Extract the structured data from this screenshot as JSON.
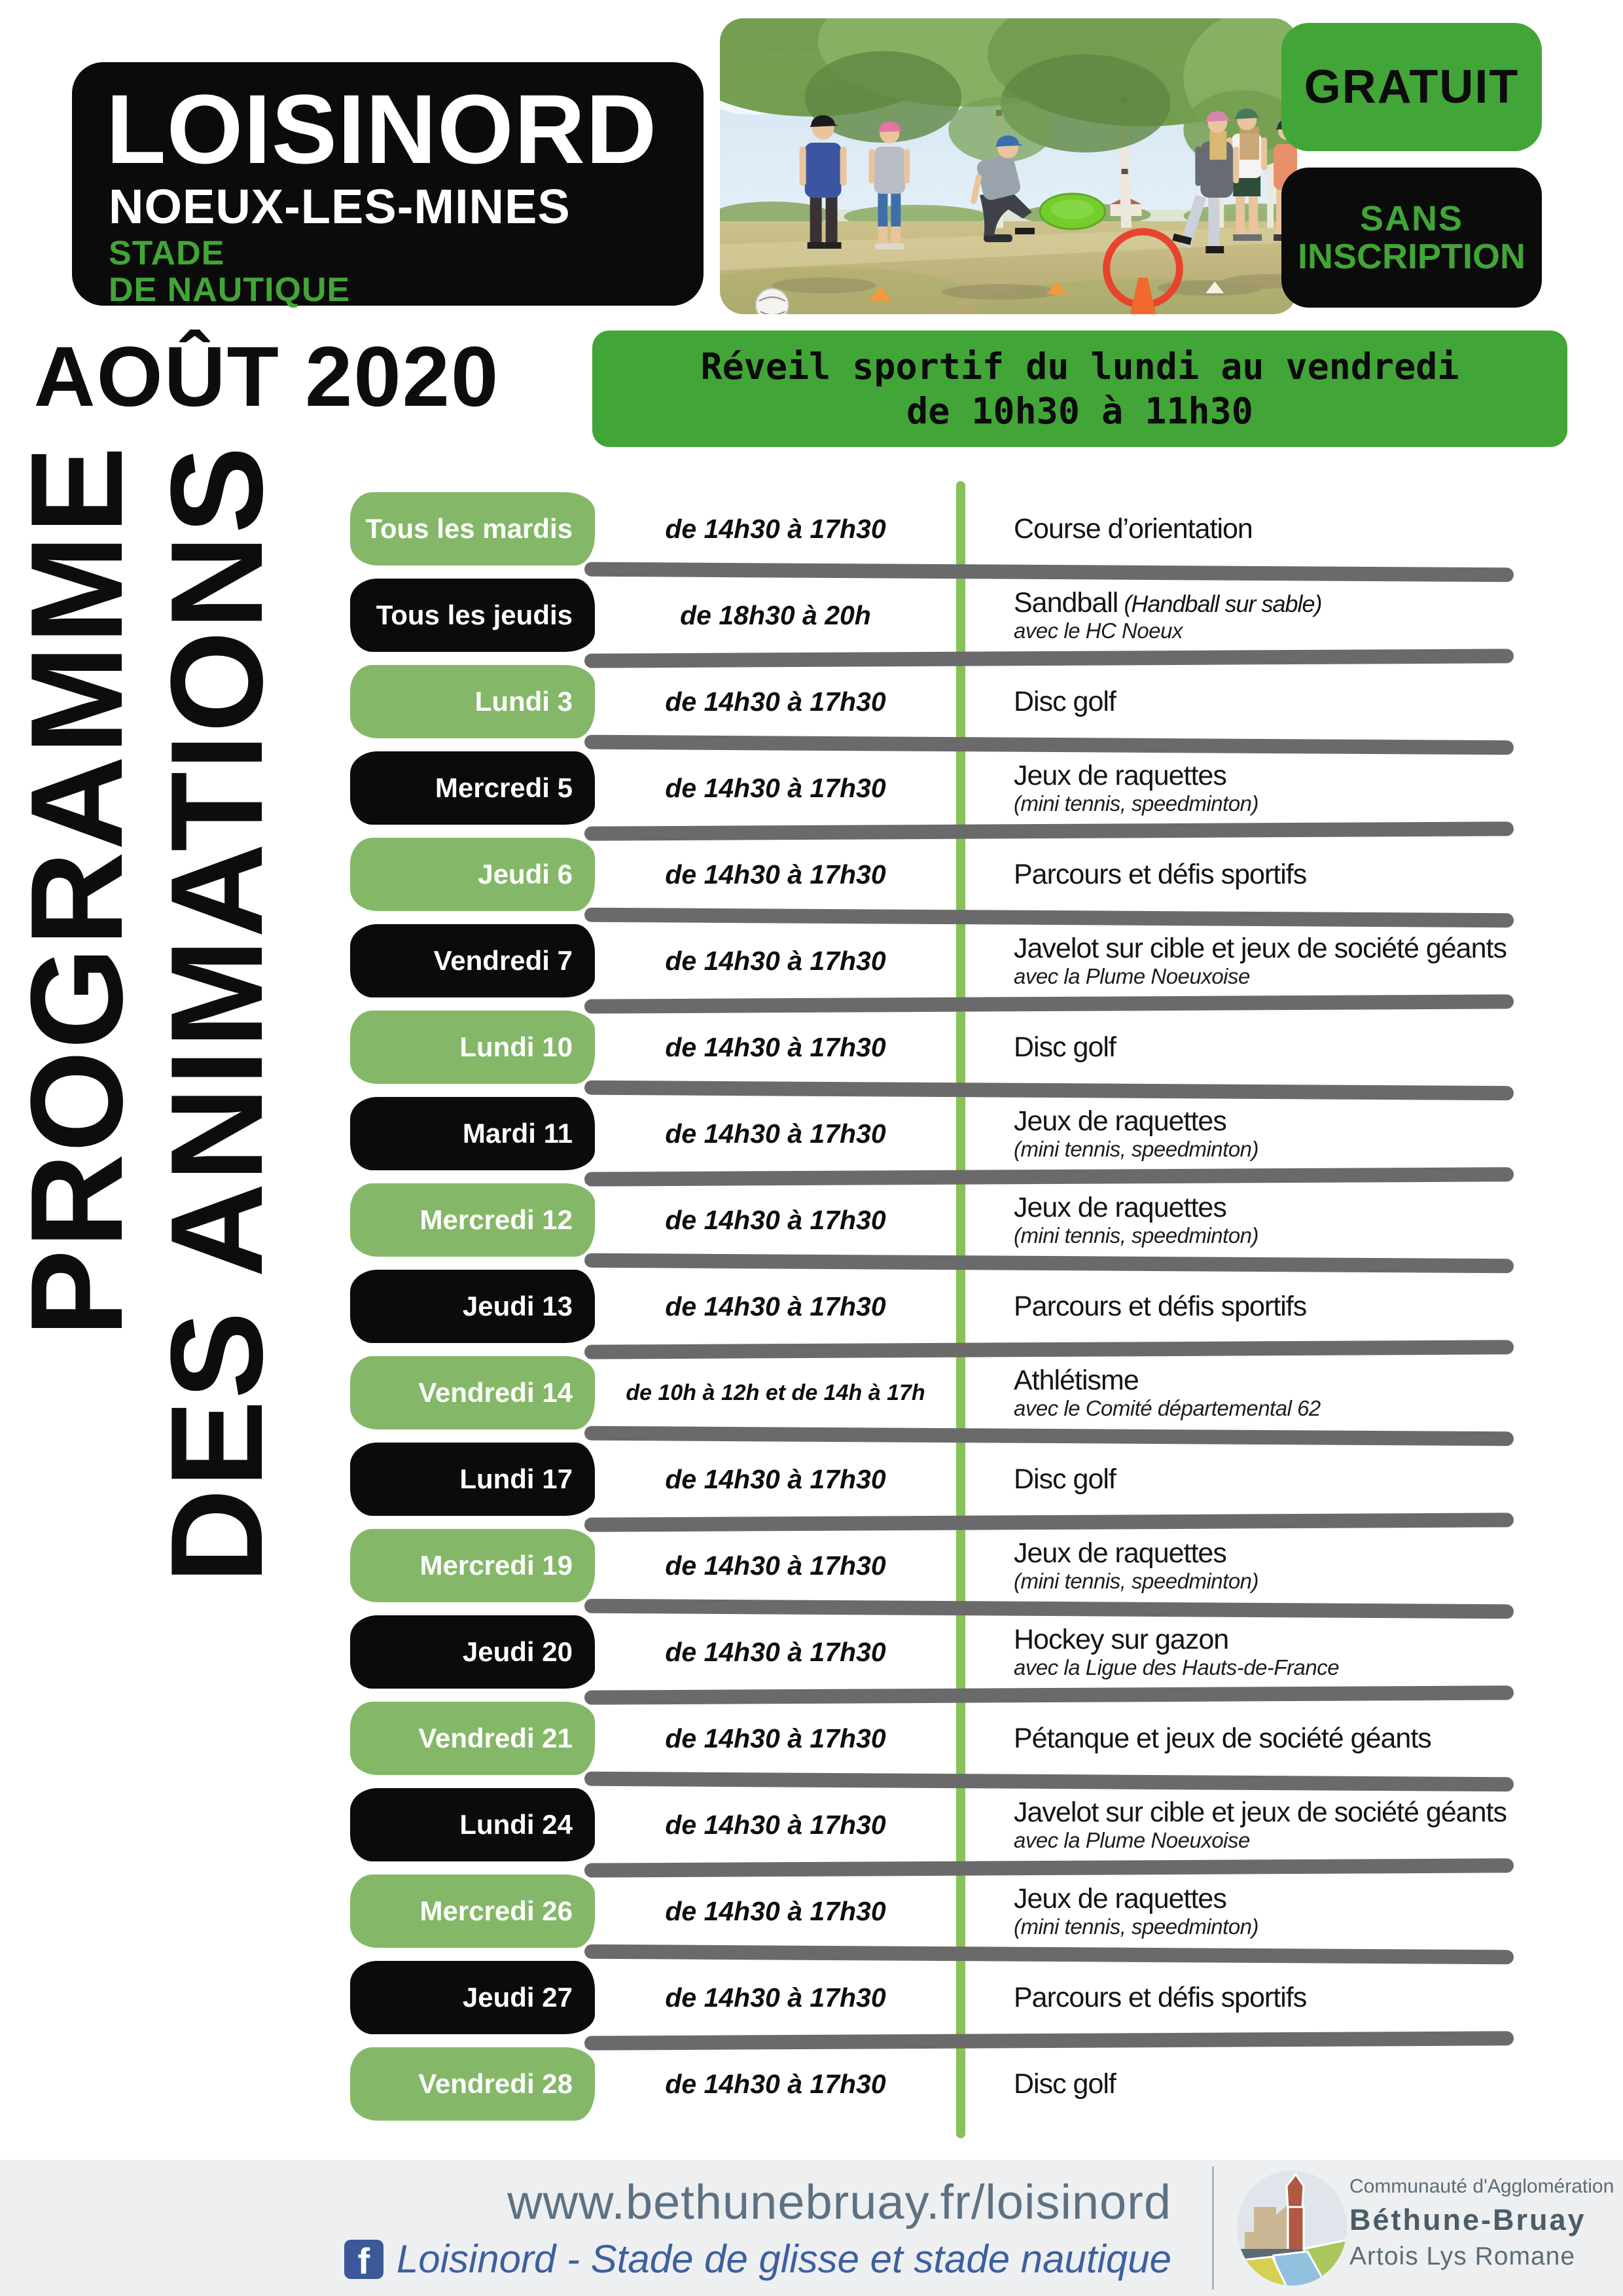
{
  "colors": {
    "green": "#42a538",
    "pill_green": "#84b868",
    "line_green": "#87c159",
    "black": "#0b0b0b",
    "divider_gray": "#6a6a6a",
    "footer_bg": "#edeff1",
    "footer_slate": "#5d7183",
    "footer_blue": "#3d5f9e",
    "fb_blue": "#3b5998",
    "org_dark": "#4c5c67",
    "org_gray": "#5c6c77"
  },
  "header": {
    "logo": {
      "title": "LOISINORD",
      "city": "NOEUX-LES-MINES",
      "venue_line1": "STADE",
      "venue_line2": "DE NAUTIQUE"
    },
    "badge_free": "GRATUIT",
    "badge_noreg_line1": "SANS",
    "badge_noreg_line2": "INSCRIPTION",
    "month": "AOÛT 2020",
    "banner_line1": "Réveil sportif du lundi au vendredi",
    "banner_line2": "de 10h30 à 11h30"
  },
  "side_title": {
    "line1": "PROGRAMME",
    "line2": "DES ANIMATIONS"
  },
  "schedule": [
    {
      "day": "Tous les mardis",
      "color": "green",
      "time": "de 14h30 à 17h30",
      "activity": "Course d’orientation"
    },
    {
      "day": "Tous les jeudis",
      "color": "black",
      "time": "de 18h30 à 20h",
      "activity": "Sandball",
      "activity_note": "(Handball sur sable)",
      "sub": "avec le HC Noeux"
    },
    {
      "day": "Lundi 3",
      "color": "green",
      "time": "de 14h30 à 17h30",
      "activity": "Disc golf"
    },
    {
      "day": "Mercredi 5",
      "color": "black",
      "time": "de 14h30 à 17h30",
      "activity": "Jeux de raquettes",
      "sub": "(mini tennis, speedminton)"
    },
    {
      "day": "Jeudi 6",
      "color": "green",
      "time": "de 14h30 à 17h30",
      "activity": "Parcours et défis sportifs"
    },
    {
      "day": "Vendredi 7",
      "color": "black",
      "time": "de 14h30 à 17h30",
      "activity": "Javelot sur cible et jeux de société géants",
      "sub": "avec la Plume Noeuxoise"
    },
    {
      "day": "Lundi 10",
      "color": "green",
      "time": "de 14h30 à 17h30",
      "activity": "Disc golf"
    },
    {
      "day": "Mardi 11",
      "color": "black",
      "time": "de 14h30 à 17h30",
      "activity": "Jeux de raquettes",
      "sub": "(mini tennis, speedminton)"
    },
    {
      "day": "Mercredi 12",
      "color": "green",
      "time": "de 14h30 à 17h30",
      "activity": "Jeux de raquettes",
      "sub": "(mini tennis, speedminton)"
    },
    {
      "day": "Jeudi 13",
      "color": "black",
      "time": "de 14h30 à 17h30",
      "activity": "Parcours et défis sportifs"
    },
    {
      "day": "Vendredi 14",
      "color": "green",
      "time": "de 10h à 12h et de 14h à 17h",
      "activity": "Athlétisme",
      "sub": "avec le Comité départemental 62"
    },
    {
      "day": "Lundi 17",
      "color": "black",
      "time": "de 14h30 à 17h30",
      "activity": "Disc golf"
    },
    {
      "day": "Mercredi 19",
      "color": "green",
      "time": "de 14h30 à 17h30",
      "activity": "Jeux de raquettes",
      "sub": "(mini tennis, speedminton)"
    },
    {
      "day": "Jeudi 20",
      "color": "black",
      "time": "de 14h30 à 17h30",
      "activity": "Hockey sur gazon",
      "sub": "avec la Ligue des Hauts-de-France"
    },
    {
      "day": "Vendredi 21",
      "color": "green",
      "time": "de 14h30 à 17h30",
      "activity": "Pétanque et jeux de société géants"
    },
    {
      "day": "Lundi 24",
      "color": "black",
      "time": "de 14h30 à 17h30",
      "activity": "Javelot sur cible et jeux de société géants",
      "sub": "avec la Plume Noeuxoise"
    },
    {
      "day": "Mercredi 26",
      "color": "green",
      "time": "de 14h30 à 17h30",
      "activity": "Jeux de raquettes",
      "sub": "(mini tennis, speedminton)"
    },
    {
      "day": "Jeudi 27",
      "color": "black",
      "time": "de 14h30 à 17h30",
      "activity": "Parcours et défis sportifs"
    },
    {
      "day": "Vendredi 28",
      "color": "green",
      "time": "de 14h30 à 17h30",
      "activity": "Disc golf"
    }
  ],
  "footer": {
    "url": "www.bethunebruay.fr/loisinord",
    "facebook": "Loisinord - Stade de glisse et stade nautique",
    "facebook_icon_letter": "f",
    "org_small": "Communauté d'Agglomération",
    "org_name": "Béthune-Bruay",
    "org_sub": "Artois Lys Romane"
  }
}
